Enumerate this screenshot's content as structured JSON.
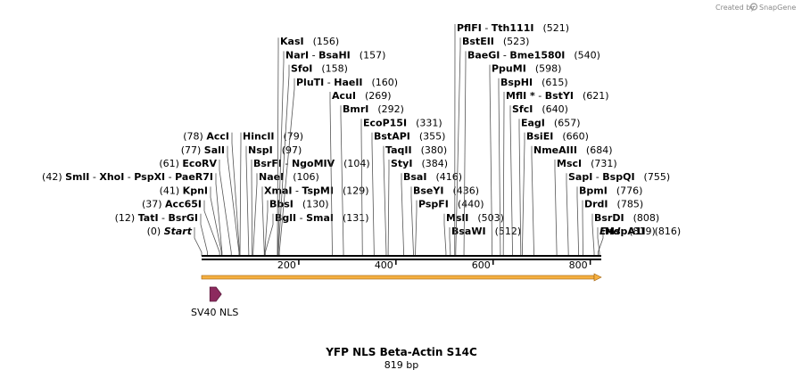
{
  "plasmid": {
    "name": "YFP NLS Beta-Actin S14C",
    "length_label": "819 bp",
    "length": 819
  },
  "credit": {
    "text": "Created by",
    "brand": "SnapGene"
  },
  "feature": {
    "name": "SV40 NLS",
    "start": 17,
    "end": 37,
    "color": "#8c2a5e"
  },
  "orf_color": "#f5b041",
  "axis": {
    "ticks": [
      {
        "pos": 200,
        "label": "200"
      },
      {
        "pos": 400,
        "label": "400"
      },
      {
        "pos": 600,
        "label": "600"
      },
      {
        "pos": 800,
        "label": "800"
      }
    ]
  },
  "left_sites": [
    {
      "name": "Start",
      "pos": 0,
      "pos_label": "(0)",
      "italic": true
    },
    {
      "name": "TatI",
      "name2": "BsrGI",
      "pos": 12,
      "pos_label": "(12)"
    },
    {
      "name": "Acc65I",
      "pos": 37,
      "pos_label": "(37)"
    },
    {
      "name": "KpnI",
      "pos": 41,
      "pos_label": "(41)"
    },
    {
      "name": "SmlI",
      "name2": "XhoI",
      "name3": "PspXI",
      "name4": "PaeR7I",
      "pos": 42,
      "pos_label": "(42)"
    },
    {
      "name": "EcoRV",
      "pos": 61,
      "pos_label": "(61)"
    },
    {
      "name": "SalI",
      "pos": 77,
      "pos_label": "(77)"
    },
    {
      "name": "AccI",
      "pos": 78,
      "pos_label": "(78)"
    }
  ],
  "right_sites": [
    {
      "name": "HincII",
      "pos": 79,
      "pos_label": "(79)"
    },
    {
      "name": "NspI",
      "pos": 97,
      "pos_label": "(97)"
    },
    {
      "name": "BsrFI",
      "name2": "NgoMIV",
      "pos": 104,
      "pos_label": "(104)"
    },
    {
      "name": "NaeI",
      "pos": 106,
      "pos_label": "(106)"
    },
    {
      "name": "XmaI",
      "name2": "TspMI",
      "pos": 129,
      "pos_label": "(129)"
    },
    {
      "name": "BbsI",
      "pos": 130,
      "pos_label": "(130)"
    },
    {
      "name": "BglI",
      "name2": "SmaI",
      "pos": 131,
      "pos_label": "(131)"
    },
    {
      "name": "KasI",
      "pos": 156,
      "pos_label": "(156)"
    },
    {
      "name": "NarI",
      "name2": "BsaHI",
      "pos": 157,
      "pos_label": "(157)"
    },
    {
      "name": "SfoI",
      "pos": 158,
      "pos_label": "(158)"
    },
    {
      "name": "PluTI",
      "name2": "HaeII",
      "pos": 160,
      "pos_label": "(160)"
    },
    {
      "name": "AcuI",
      "pos": 269,
      "pos_label": "(269)"
    },
    {
      "name": "BmrI",
      "pos": 292,
      "pos_label": "(292)"
    },
    {
      "name": "EcoP15I",
      "pos": 331,
      "pos_label": "(331)"
    },
    {
      "name": "BstAPI",
      "pos": 355,
      "pos_label": "(355)"
    },
    {
      "name": "TaqII",
      "pos": 380,
      "pos_label": "(380)"
    },
    {
      "name": "StyI",
      "pos": 384,
      "pos_label": "(384)"
    },
    {
      "name": "BsaI",
      "pos": 416,
      "pos_label": "(416)"
    },
    {
      "name": "BseYI",
      "pos": 436,
      "pos_label": "(436)"
    },
    {
      "name": "PspFI",
      "pos": 440,
      "pos_label": "(440)"
    },
    {
      "name": "MslI",
      "pos": 503,
      "pos_label": "(503)"
    },
    {
      "name": "BsaWI",
      "pos": 512,
      "pos_label": "(512)"
    },
    {
      "name": "PflFI",
      "name2": "Tth111I",
      "pos": 521,
      "pos_label": "(521)"
    },
    {
      "name": "BstEII",
      "pos": 523,
      "pos_label": "(523)"
    },
    {
      "name": "BaeGI",
      "name2": "Bme1580I",
      "pos": 540,
      "pos_label": "(540)"
    },
    {
      "name": "PpuMI",
      "pos": 598,
      "pos_label": "(598)"
    },
    {
      "name": "BspHI",
      "pos": 615,
      "pos_label": "(615)"
    },
    {
      "name": "MflI *",
      "name2": "BstYI",
      "pos": 621,
      "pos_label": "(621)"
    },
    {
      "name": "SfcI",
      "pos": 640,
      "pos_label": "(640)"
    },
    {
      "name": "EagI",
      "pos": 657,
      "pos_label": "(657)"
    },
    {
      "name": "BsiEI",
      "pos": 660,
      "pos_label": "(660)"
    },
    {
      "name": "NmeAIII",
      "pos": 684,
      "pos_label": "(684)"
    },
    {
      "name": "MscI",
      "pos": 731,
      "pos_label": "(731)"
    },
    {
      "name": "SapI",
      "name2": "BspQI",
      "pos": 755,
      "pos_label": "(755)"
    },
    {
      "name": "BpmI",
      "pos": 776,
      "pos_label": "(776)"
    },
    {
      "name": "DrdI",
      "pos": 785,
      "pos_label": "(785)"
    },
    {
      "name": "BsrDI",
      "pos": 808,
      "pos_label": "(808)"
    },
    {
      "name": "MspA1I",
      "pos": 816,
      "pos_label": "(816)"
    },
    {
      "name": "End",
      "pos": 819,
      "pos_label": "(819)",
      "italic": true
    }
  ]
}
